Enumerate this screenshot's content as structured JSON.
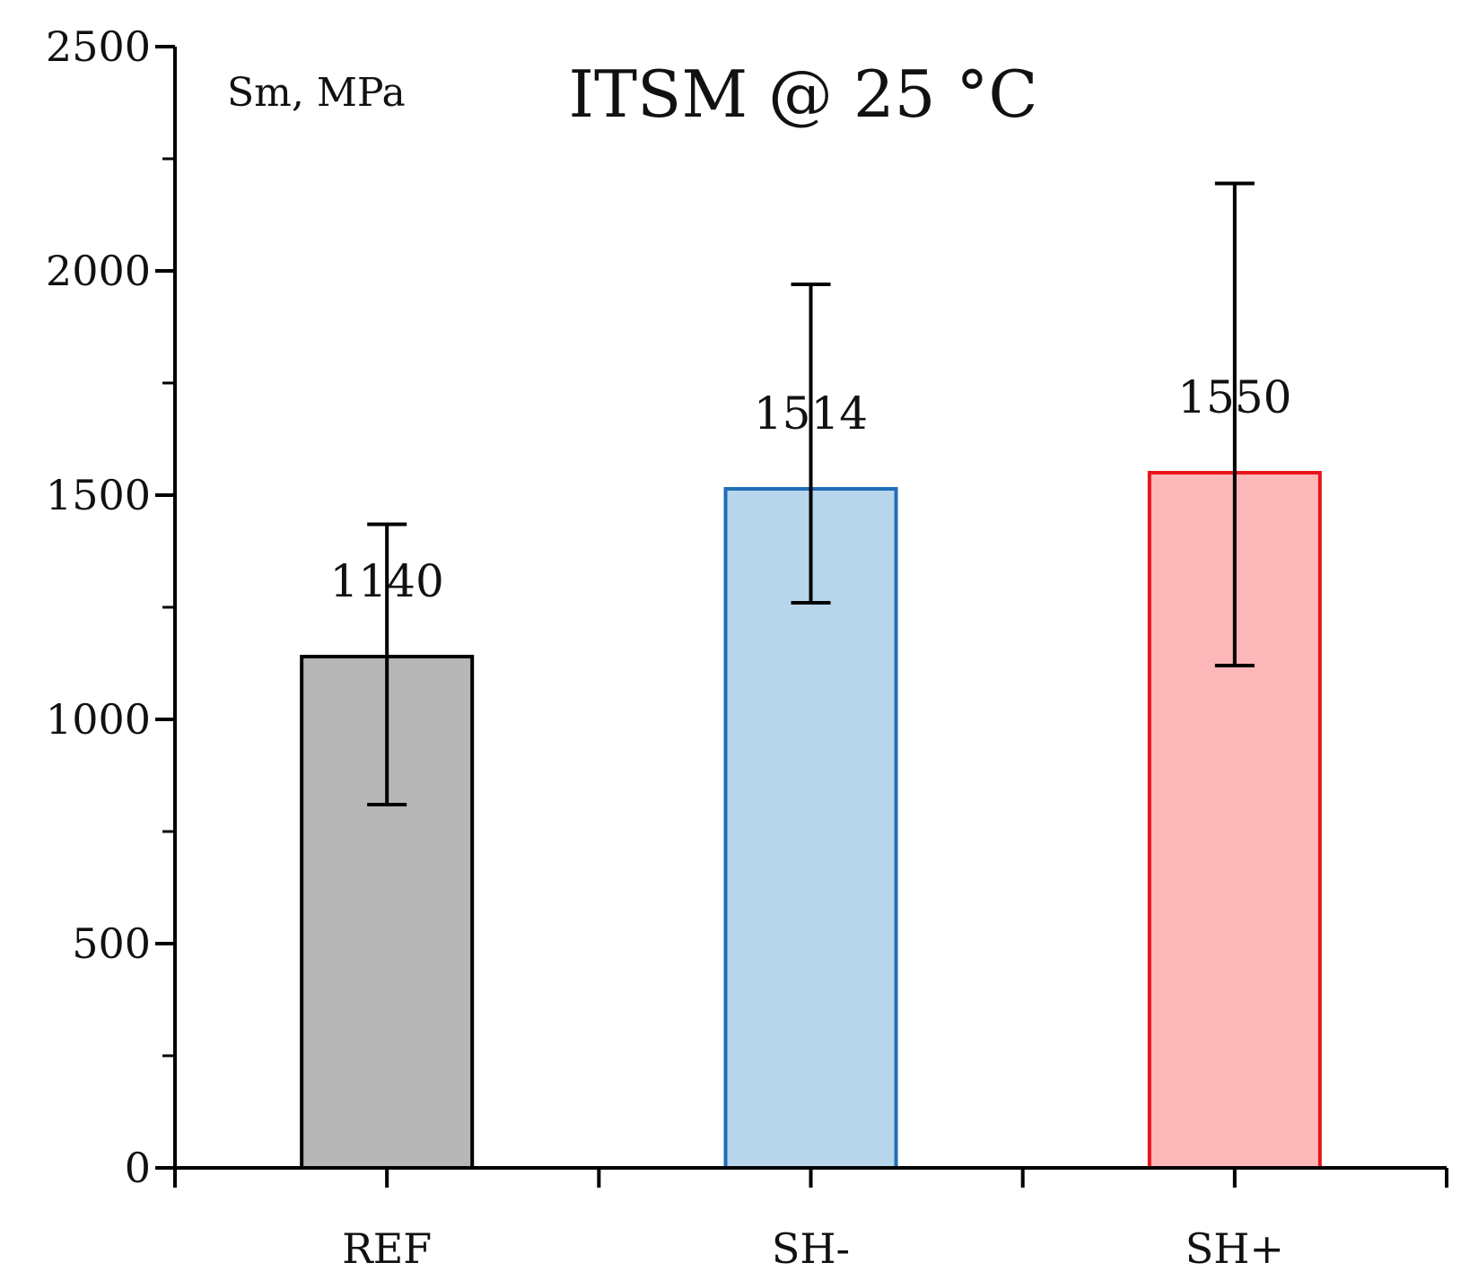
{
  "chart_data": {
    "type": "bar",
    "title": "ITSM @ 25 °C",
    "unit_label": "Sm, MPa",
    "xlabel": "",
    "ylabel": "Sm, MPa",
    "categories": [
      "REF",
      "SH-",
      "SH+"
    ],
    "values": [
      1140,
      1514,
      1550
    ],
    "data_labels": [
      "1140",
      "1514",
      "1550"
    ],
    "error_low": [
      810,
      1260,
      1120
    ],
    "error_high": [
      1435,
      1970,
      2195
    ],
    "bar_fill_colors": [
      "#b7b7b7",
      "#b8d6eb",
      "#fcb8b8"
    ],
    "bar_edge_colors": [
      "#000000",
      "#1f6fb8",
      "#e8141c"
    ],
    "ylim": [
      0,
      2500
    ],
    "major_ticks": [
      0,
      500,
      1000,
      1500,
      2000,
      2500
    ],
    "tick_labels": [
      "0",
      "500",
      "1000",
      "1500",
      "2000",
      "2500"
    ],
    "minor_ticks": [
      250,
      750,
      1250,
      1750,
      2250
    ],
    "grid": false,
    "legend": "none"
  }
}
